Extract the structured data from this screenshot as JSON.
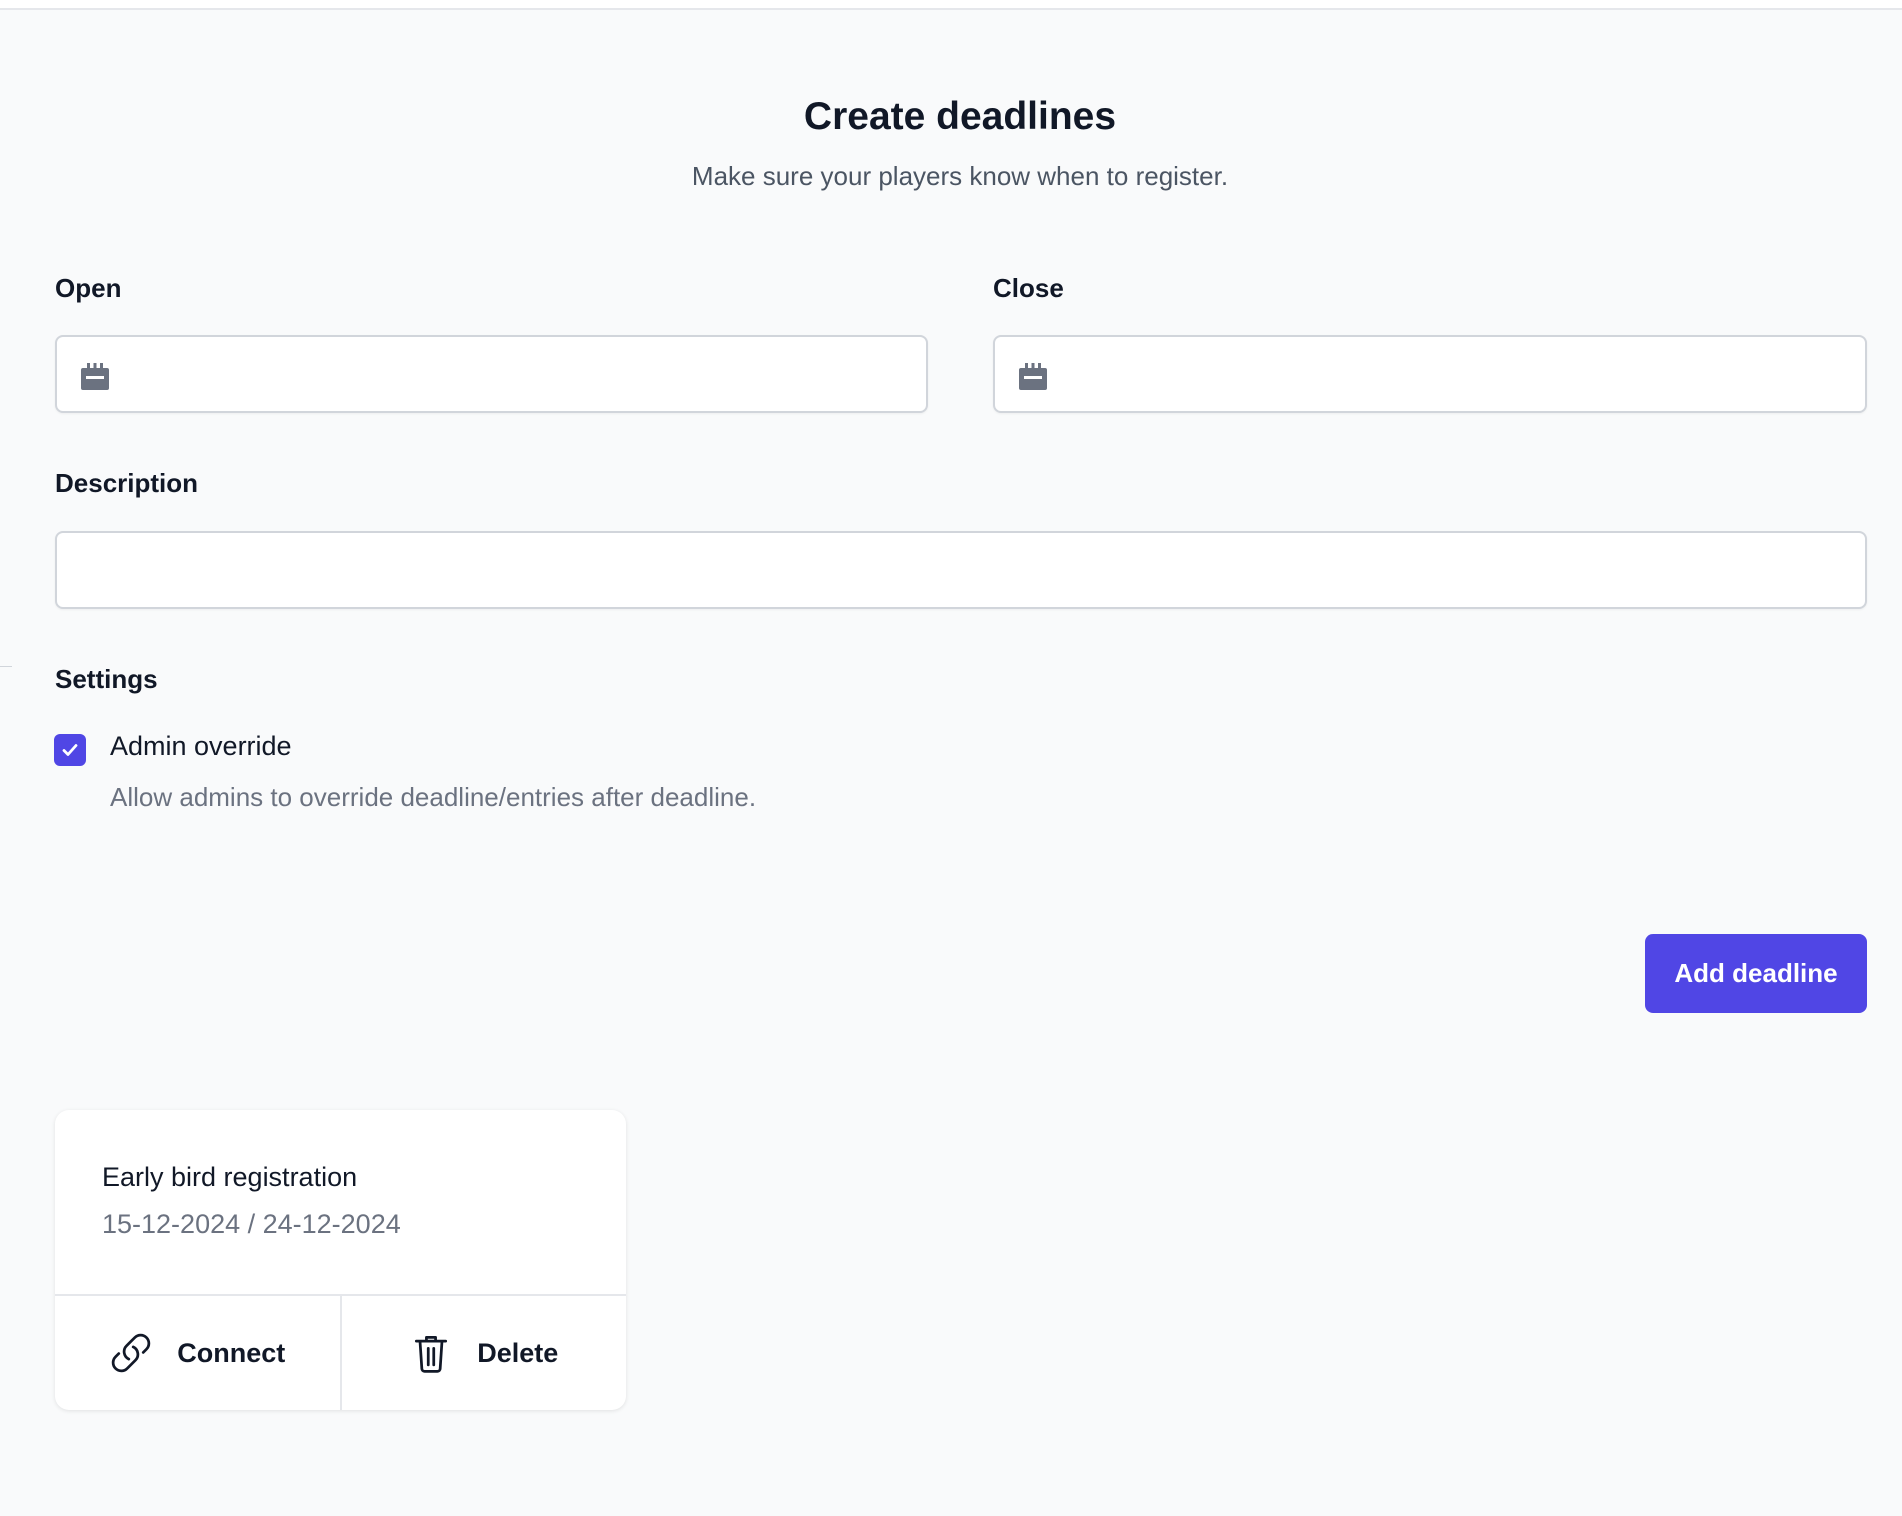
{
  "header": {
    "title": "Create deadlines",
    "subtitle": "Make sure your players know when to register."
  },
  "form": {
    "open": {
      "label": "Open",
      "value": "",
      "icon": "calendar-icon"
    },
    "close": {
      "label": "Close",
      "value": "",
      "icon": "calendar-icon"
    },
    "description": {
      "label": "Description",
      "value": ""
    },
    "settings": {
      "label": "Settings",
      "admin_override": {
        "label": "Admin override",
        "help": "Allow admins to override deadline/entries after deadline.",
        "checked": true
      }
    },
    "submit_label": "Add deadline"
  },
  "deadlines": [
    {
      "title": "Early bird registration",
      "dates": "15-12-2024 / 24-12-2024",
      "connect_label": "Connect",
      "delete_label": "Delete"
    }
  ],
  "colors": {
    "accent": "#5046e5",
    "background": "#f9fafb"
  }
}
